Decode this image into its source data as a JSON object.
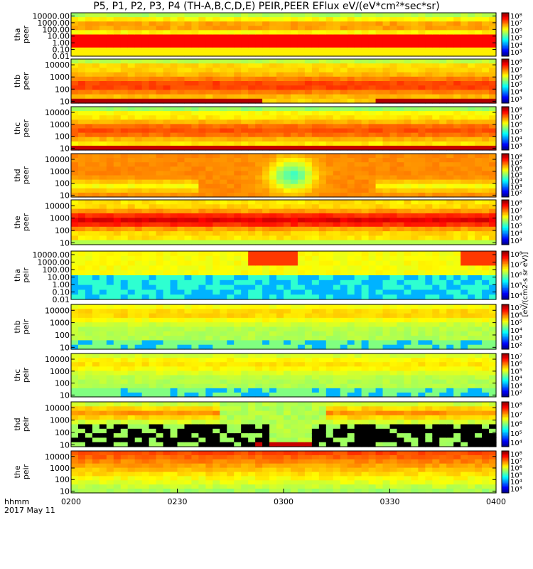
{
  "chart_data": {
    "type": "heatmap",
    "title": "P5, P1, P2, P3, P4 (TH-A,B,C,D,E) PEIR,PEER EFlux eV/(eV*cm²*sec*sr)",
    "xlabel": "hhmm",
    "date": "2017 May 11",
    "xticks": [
      "0200",
      "0230",
      "0300",
      "0330",
      "0400"
    ],
    "xrange": [
      "0200",
      "0400"
    ],
    "yscale": "log",
    "colorbar_unit": "[eV/(cm2-s sr eV)]",
    "panels": [
      {
        "name": "tha\npeer",
        "yticks": [
          "10000.00",
          "1000.00",
          "100.00",
          "10.00",
          "1.00",
          "0.10",
          "0.01"
        ],
        "ylim": [
          0.01,
          30000
        ],
        "cticks": [
          "10⁸",
          "10⁷",
          "10⁶",
          "10⁵",
          "10⁴",
          "10³"
        ]
      },
      {
        "name": "thb\npeer",
        "yticks": [
          "10000",
          "1000",
          "100",
          "10"
        ],
        "ylim": [
          7,
          30000
        ],
        "cticks": [
          "10⁸",
          "10⁷",
          "10⁶",
          "10⁵",
          "10⁴",
          "10³"
        ]
      },
      {
        "name": "thc\npeer",
        "yticks": [
          "10000",
          "1000",
          "100",
          "10"
        ],
        "ylim": [
          7,
          30000
        ],
        "cticks": [
          "10⁸",
          "10⁷",
          "10⁶",
          "10⁵",
          "10⁴",
          "10³"
        ]
      },
      {
        "name": "thd\npeer",
        "yticks": [
          "10000",
          "1000",
          "100",
          "10"
        ],
        "ylim": [
          7,
          30000
        ],
        "cticks": [
          "10⁸",
          "10⁷",
          "10⁶",
          "10⁵",
          "10⁴",
          "10³",
          "10²"
        ]
      },
      {
        "name": "the\npeer",
        "yticks": [
          "10000",
          "1000",
          "100",
          "10"
        ],
        "ylim": [
          7,
          30000
        ],
        "cticks": [
          "10⁸",
          "10⁷",
          "10⁶",
          "10⁵",
          "10⁴",
          "10³"
        ]
      },
      {
        "name": "tha\npeir",
        "yticks": [
          "10000.00",
          "1000.00",
          "100.00",
          "10.00",
          "1.00",
          "0.10",
          "0.01"
        ],
        "ylim": [
          0.01,
          30000
        ],
        "cticks": [
          "10⁸",
          "10⁷",
          "10⁶",
          "10⁵",
          "10⁴"
        ]
      },
      {
        "name": "thb\npeir",
        "yticks": [
          "10000",
          "1000",
          "100",
          "10"
        ],
        "ylim": [
          7,
          30000
        ],
        "cticks": [
          "10⁷",
          "10⁶",
          "10⁵",
          "10⁴",
          "10³",
          "10²"
        ]
      },
      {
        "name": "thc\npeir",
        "yticks": [
          "10000",
          "1000",
          "100",
          "10"
        ],
        "ylim": [
          7,
          30000
        ],
        "cticks": [
          "10⁷",
          "10⁶",
          "10⁵",
          "10⁴",
          "10³",
          "10²"
        ]
      },
      {
        "name": "thd\npeir",
        "yticks": [
          "10000",
          "1000",
          "100",
          "10"
        ],
        "ylim": [
          7,
          30000
        ],
        "cticks": [
          "10⁸",
          "10⁷",
          "10⁶",
          "10⁵",
          "10⁴"
        ]
      },
      {
        "name": "the\npeir",
        "yticks": [
          "10000",
          "1000",
          "100",
          "10"
        ],
        "ylim": [
          7,
          30000
        ],
        "cticks": [
          "10⁸",
          "10⁷",
          "10⁶",
          "10⁵",
          "10⁴",
          "10³"
        ]
      }
    ]
  }
}
